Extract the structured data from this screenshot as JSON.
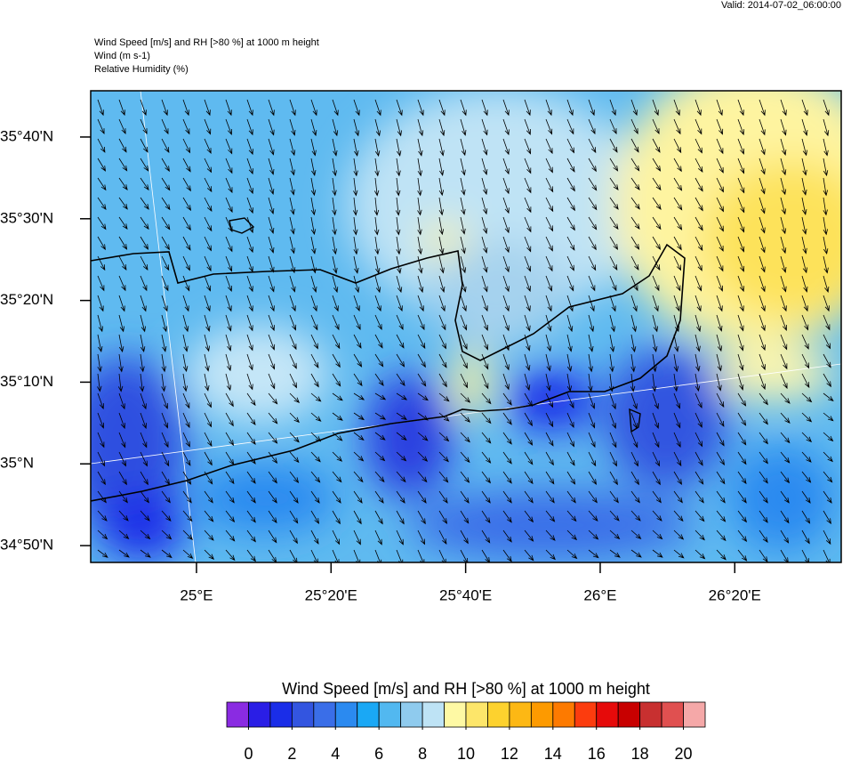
{
  "header": {
    "valid": "Valid: 2014-07-02_06:00:00",
    "lines": [
      "Wind Speed [m/s] and RH [>80 %] at 1000 m height",
      "Wind   (m s-1)",
      "Relative Humidity   (%)"
    ]
  },
  "map": {
    "lat_lim": [
      34.799,
      35.761
    ],
    "lat_ticks": [
      {
        "value": 35.6667,
        "label": "35°40'N"
      },
      {
        "value": 35.5,
        "label": "35°30'N"
      },
      {
        "value": 35.3333,
        "label": "35°20'N"
      },
      {
        "value": 35.1667,
        "label": "35°10'N"
      },
      {
        "value": 35,
        "label": "35°N"
      },
      {
        "value": 34.8333,
        "label": "34°50'N"
      }
    ],
    "lon_lim": [
      24.738,
      26.597
    ],
    "lon_ticks": [
      {
        "value": 25,
        "label": "25°E"
      },
      {
        "value": 25.3333,
        "label": "25°20'E"
      },
      {
        "value": 25.6667,
        "label": "25°40'E"
      },
      {
        "value": 26,
        "label": "26°E"
      },
      {
        "value": 26.3333,
        "label": "26°20'E"
      }
    ]
  },
  "colorbar": {
    "title": "Wind Speed [m/s] and RH [>80 %] at 1000 m height",
    "lim": [
      -1,
      21
    ],
    "colors": [
      "#8a2be2",
      "#2a1ee6",
      "#1a2de8",
      "#3355e0",
      "#3a6ee8",
      "#2b8af0",
      "#1aa8f5",
      "#52b8f0",
      "#8fcbee",
      "#bee3f5",
      "#fef9a4",
      "#fde66a",
      "#fdd22e",
      "#fdb814",
      "#fd9a00",
      "#fd7a00",
      "#fc3c0e",
      "#e60a0a",
      "#c80000",
      "#c83030",
      "#e05050",
      "#f5a8a8"
    ],
    "ticks": [
      0,
      2,
      4,
      6,
      8,
      10,
      12,
      14,
      16,
      18,
      20
    ]
  }
}
